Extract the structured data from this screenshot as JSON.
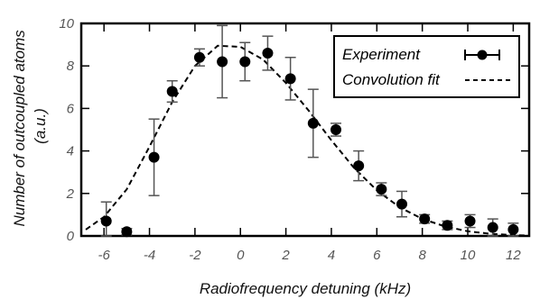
{
  "chart_data": {
    "type": "scatter",
    "title": "",
    "xlabel": "Radiofrequency detuning (kHz)",
    "ylabel_line1": "Number of outcoupled atoms",
    "ylabel_line2": "(a.u.)",
    "xlim": [
      -7,
      12.7
    ],
    "ylim": [
      0,
      10
    ],
    "xticks": [
      -6,
      -4,
      -2,
      0,
      2,
      4,
      6,
      8,
      10,
      12
    ],
    "yticks": [
      0,
      2,
      4,
      6,
      8,
      10
    ],
    "grid": false,
    "legend_position": "top-right",
    "series": [
      {
        "name": "Experiment",
        "style": "markers-with-errorbars",
        "color": "#000000",
        "x": [
          -5.9,
          -5.0,
          -3.8,
          -3.0,
          -1.8,
          -0.8,
          0.2,
          1.2,
          2.2,
          3.2,
          4.2,
          5.2,
          6.2,
          7.1,
          8.1,
          9.1,
          10.1,
          11.1,
          12.0
        ],
        "y": [
          0.7,
          0.2,
          3.7,
          6.8,
          8.4,
          8.2,
          8.2,
          8.6,
          7.4,
          5.3,
          5.0,
          3.3,
          2.2,
          1.5,
          0.8,
          0.5,
          0.7,
          0.4,
          0.3
        ],
        "yerr": [
          0.9,
          0.15,
          1.8,
          0.5,
          0.4,
          1.7,
          0.9,
          0.8,
          1.0,
          1.6,
          0.3,
          0.7,
          0.3,
          0.6,
          0.2,
          0.2,
          0.3,
          0.4,
          0.3
        ]
      },
      {
        "name": "Convolution fit",
        "style": "dashed-line",
        "color": "#000000",
        "x": [
          -6.8,
          -6.0,
          -5.0,
          -4.0,
          -3.0,
          -2.0,
          -1.0,
          0.0,
          1.0,
          2.0,
          3.0,
          4.0,
          5.0,
          6.0,
          7.0,
          8.0,
          9.0,
          10.0,
          11.0,
          12.0,
          12.6
        ],
        "y": [
          0.3,
          0.9,
          2.2,
          4.2,
          6.3,
          8.0,
          8.95,
          8.9,
          8.3,
          7.2,
          5.9,
          4.5,
          3.2,
          2.15,
          1.35,
          0.8,
          0.45,
          0.22,
          0.1,
          0.04,
          0.02
        ]
      }
    ]
  }
}
